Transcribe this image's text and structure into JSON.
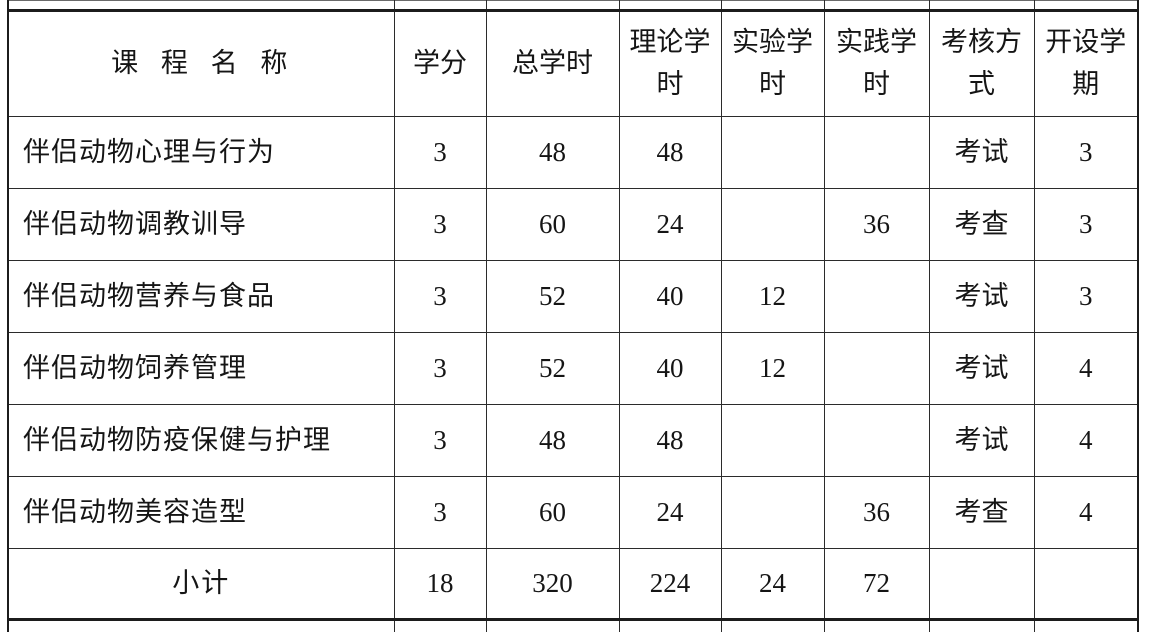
{
  "colors": {
    "background": "#ffffff",
    "grid_line": "#2b2b2b",
    "heavy_rule": "#1c1c1c",
    "text": "#151515"
  },
  "table": {
    "columns": [
      {
        "key": "course",
        "label": "课 程 名 称"
      },
      {
        "key": "credits",
        "label": "学分"
      },
      {
        "key": "total",
        "label": "总学时"
      },
      {
        "key": "theory",
        "label": "理论学时"
      },
      {
        "key": "lab",
        "label": "实验学时"
      },
      {
        "key": "practice",
        "label": "实践学时"
      },
      {
        "key": "assess",
        "label": "考核方式"
      },
      {
        "key": "semester",
        "label": "开设学期"
      }
    ],
    "rows": [
      [
        "伴侣动物心理与行为",
        "3",
        "48",
        "48",
        "",
        "",
        "考试",
        "3"
      ],
      [
        "伴侣动物调教训导",
        "3",
        "60",
        "24",
        "",
        "36",
        "考查",
        "3"
      ],
      [
        "伴侣动物营养与食品",
        "3",
        "52",
        "40",
        "12",
        "",
        "考试",
        "3"
      ],
      [
        "伴侣动物饲养管理",
        "3",
        "52",
        "40",
        "12",
        "",
        "考试",
        "4"
      ],
      [
        "伴侣动物防疫保健与护理",
        "3",
        "48",
        "48",
        "",
        "",
        "考试",
        "4"
      ],
      [
        "伴侣动物美容造型",
        "3",
        "60",
        "24",
        "",
        "36",
        "考查",
        "4"
      ]
    ],
    "subtotal": [
      "小计",
      "18",
      "320",
      "224",
      "24",
      "72",
      "",
      ""
    ]
  }
}
